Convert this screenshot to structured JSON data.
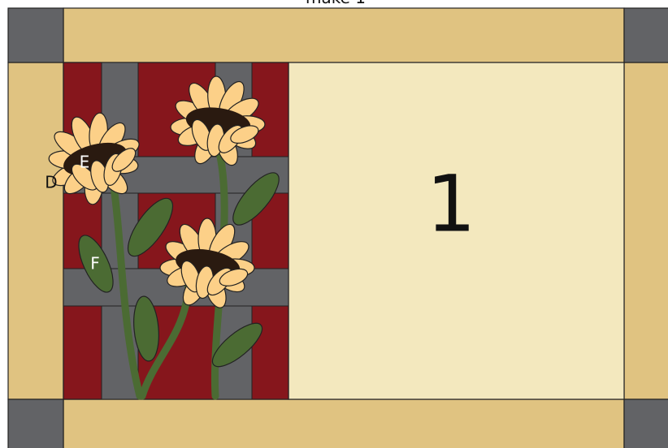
{
  "header": {
    "caption": "make 1"
  },
  "labels": {
    "piece_d": "D",
    "piece_e": "E",
    "piece_f": "F"
  },
  "block_number": "1"
}
